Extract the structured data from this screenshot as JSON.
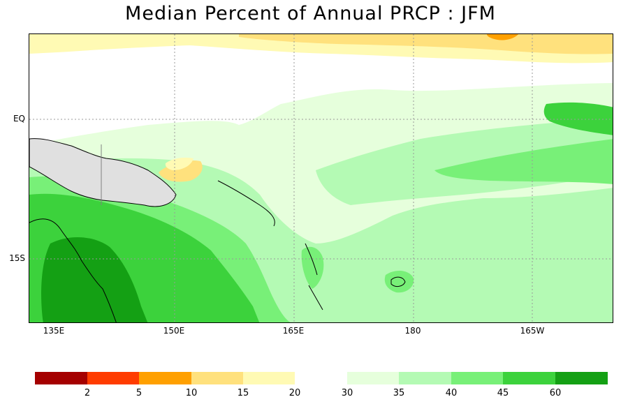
{
  "title": "Median Percent of Annual PRCP  :  JFM",
  "map": {
    "lat_labels": [
      "EQ",
      "15S"
    ],
    "lon_labels": [
      "135E",
      "150E",
      "165E",
      "180",
      "165W"
    ],
    "colors": {
      "ocean_white": "#ffffff",
      "very_dry": "#a50000",
      "dry_2_5": "#ff3c00",
      "dry_5_10": "#ffa000",
      "dry_10_15": "#ffe17d",
      "dry_15_20": "#fffab4",
      "wet_30_35": "#e6ffdc",
      "wet_35_40": "#b4fab4",
      "wet_40_45": "#78f078",
      "wet_45_60": "#3cd23c",
      "wet_60_plus": "#14a014",
      "coast": "#000000",
      "border": "#808080",
      "grid": "#999999"
    }
  },
  "colorbar": {
    "dry": [
      {
        "color": "#a50000"
      },
      {
        "color": "#ff3c00"
      },
      {
        "color": "#ffa000"
      },
      {
        "color": "#ffe17d"
      },
      {
        "color": "#fffab4"
      }
    ],
    "wet": [
      {
        "color": "#e6ffdc"
      },
      {
        "color": "#b4fab4"
      },
      {
        "color": "#78f078"
      },
      {
        "color": "#3cd23c"
      },
      {
        "color": "#14a014"
      }
    ],
    "dry_labels": [
      "2",
      "5",
      "10",
      "15",
      "20"
    ],
    "wet_labels": [
      "30",
      "35",
      "40",
      "45",
      "60"
    ]
  }
}
